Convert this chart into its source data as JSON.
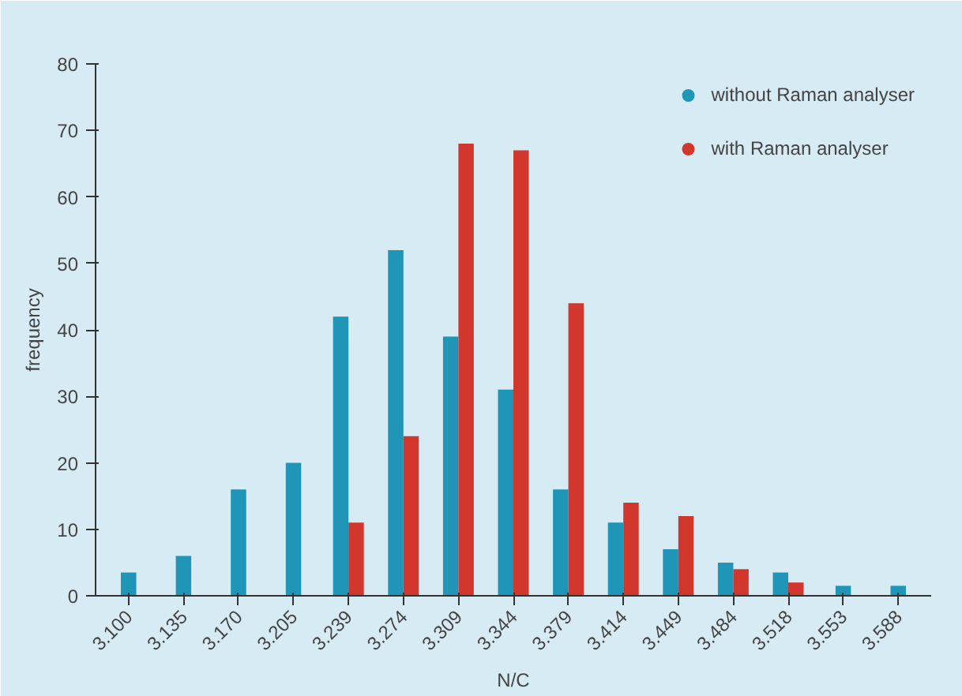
{
  "chart_data": {
    "type": "bar",
    "xlabel": "N/C",
    "ylabel": "frequency",
    "categories": [
      "3.100",
      "3.135",
      "3.170",
      "3.205",
      "3.239",
      "3.274",
      "3.309",
      "3.344",
      "3.379",
      "3.414",
      "3.449",
      "3.484",
      "3.518",
      "3.553",
      "3.588"
    ],
    "series": [
      {
        "name": "without Raman analyser",
        "color": "#1f95b8",
        "values": [
          3.5,
          6,
          16,
          20,
          42,
          52,
          39,
          31,
          16,
          11,
          7,
          5,
          3.5,
          1.5,
          1.5
        ]
      },
      {
        "name": "with Raman analyser",
        "color": "#d1372c",
        "values": [
          null,
          null,
          null,
          null,
          11,
          24,
          68,
          67,
          44,
          14,
          12,
          4,
          2,
          null,
          null
        ]
      }
    ],
    "ylim": [
      0,
      80
    ],
    "yticks": [
      0,
      10,
      20,
      30,
      40,
      50,
      60,
      70,
      80
    ],
    "grid": false,
    "legend": "top right"
  }
}
